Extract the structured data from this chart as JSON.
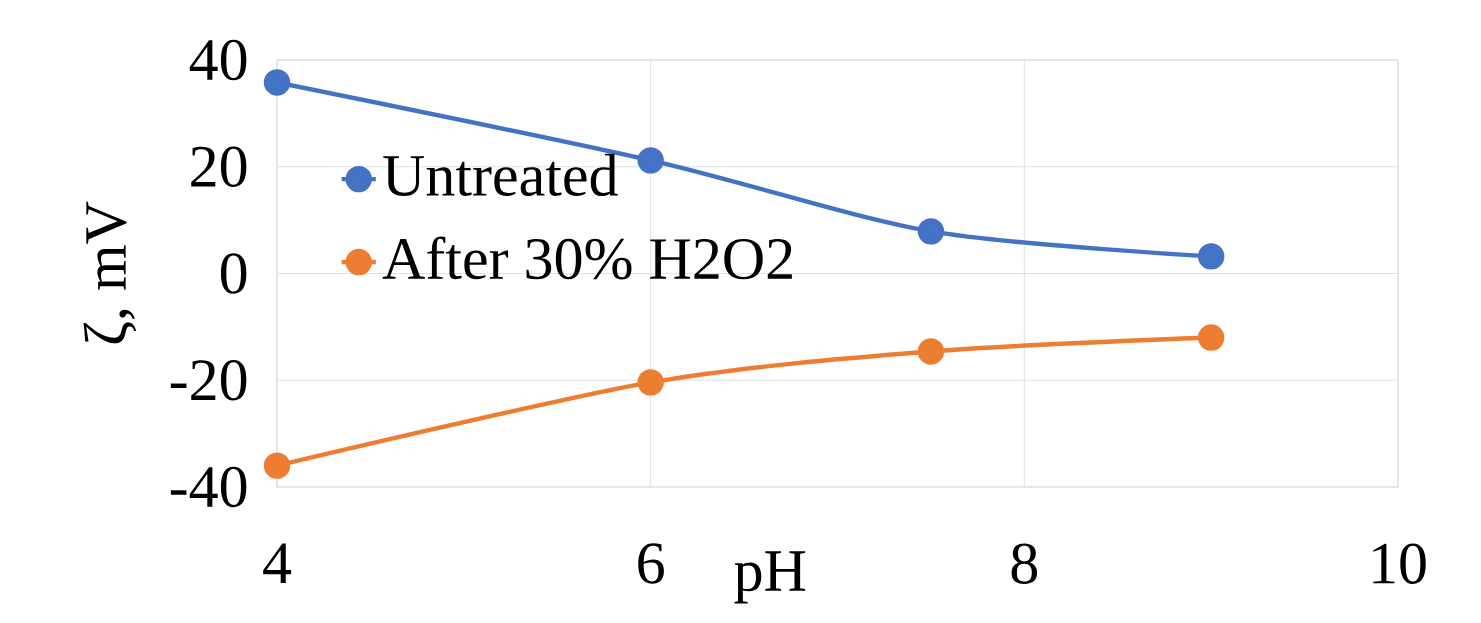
{
  "chart_data": {
    "type": "line",
    "xlabel": "pH",
    "ylabel": "ζ, mV",
    "x": [
      4,
      6,
      7.5,
      9
    ],
    "series": [
      {
        "name": "Untreated",
        "color": "#4472c4",
        "values": [
          35.8,
          21.2,
          7.9,
          3.2
        ]
      },
      {
        "name": "After 30% H2O2",
        "color": "#ed7d31",
        "values": [
          -36,
          -20.4,
          -14.6,
          -12
        ]
      }
    ],
    "xlim": [
      4,
      10
    ],
    "ylim": [
      -40,
      40
    ],
    "xticks": [
      4,
      6,
      8,
      10
    ],
    "yticks": [
      -40,
      -20,
      0,
      20,
      40
    ],
    "grid": true,
    "legend": "left",
    "marker": "circle",
    "line_style": "solid"
  }
}
